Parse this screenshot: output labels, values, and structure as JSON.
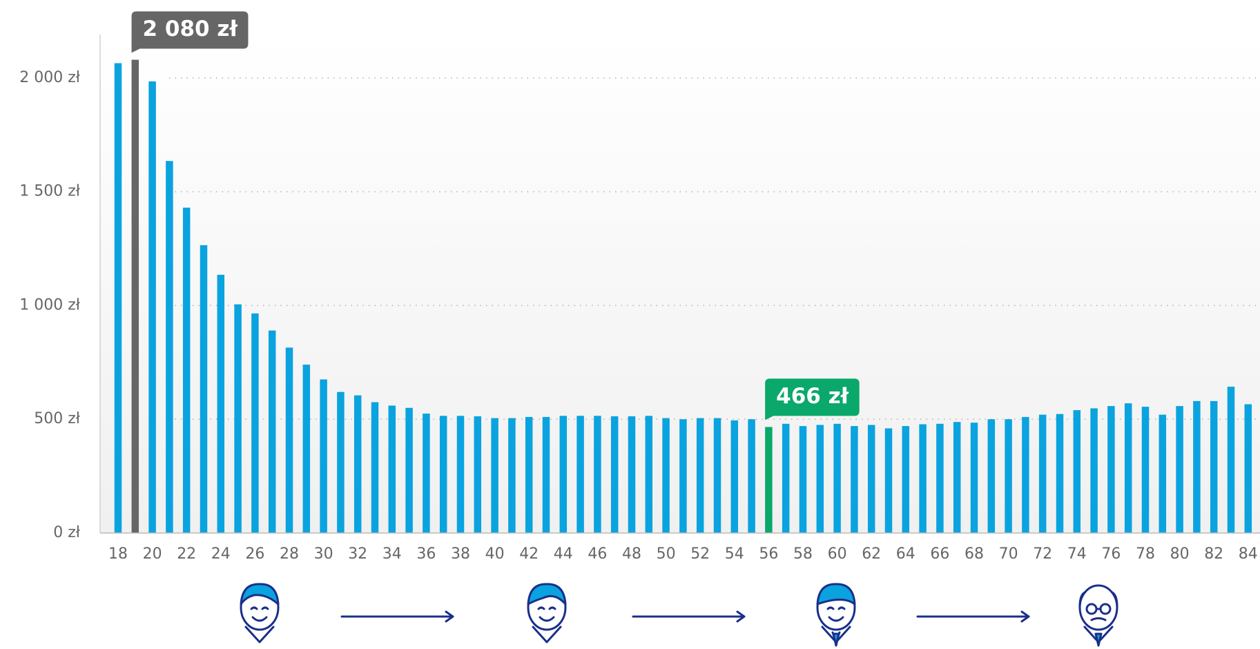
{
  "chart_data": {
    "type": "bar",
    "categories": [
      "18",
      null,
      "20",
      null,
      "22",
      null,
      "24",
      null,
      "26",
      null,
      "28",
      null,
      "30",
      null,
      "32",
      null,
      "34",
      null,
      "36",
      null,
      "38",
      null,
      "40",
      null,
      "42",
      null,
      "44",
      null,
      "46",
      null,
      "48",
      null,
      "50",
      null,
      "52",
      null,
      "54",
      null,
      "56",
      null,
      "58",
      null,
      "60",
      null,
      "62",
      null,
      "64",
      null,
      "66",
      null,
      "68",
      null,
      "70",
      null,
      "72",
      null,
      "74",
      null,
      "76",
      null,
      "78",
      null,
      "80",
      null,
      "82",
      null,
      "84",
      null
    ],
    "values": [
      2065,
      2080,
      1985,
      1635,
      1430,
      1265,
      1135,
      1005,
      965,
      890,
      815,
      740,
      675,
      620,
      605,
      575,
      560,
      550,
      525,
      515,
      515,
      513,
      505,
      505,
      510,
      510,
      515,
      515,
      515,
      513,
      513,
      515,
      505,
      500,
      505,
      505,
      495,
      500,
      466,
      480,
      470,
      475,
      480,
      470,
      475,
      460,
      470,
      478,
      480,
      488,
      485,
      500,
      500,
      510,
      520,
      523,
      540,
      548,
      558,
      570,
      555,
      520,
      558,
      580,
      580,
      643,
      566,
      555
    ],
    "value_labels": [
      null,
      "2 080 zł",
      null,
      null,
      null,
      null,
      null,
      null,
      null,
      null,
      null,
      null,
      null,
      null,
      null,
      null,
      null,
      null,
      null,
      null,
      null,
      null,
      null,
      null,
      null,
      null,
      null,
      null,
      null,
      null,
      null,
      null,
      null,
      null,
      null,
      null,
      null,
      null,
      "466 zł",
      null,
      null,
      null,
      null,
      null,
      null,
      null,
      null,
      null,
      null,
      null,
      null,
      null,
      null,
      null,
      null,
      null,
      null,
      null,
      null,
      null,
      null,
      null,
      null,
      null,
      null,
      null,
      null,
      null
    ],
    "color": "#0aa3df",
    "highlight_colors": [
      null,
      "#666666",
      null,
      null,
      null,
      null,
      null,
      null,
      null,
      null,
      null,
      null,
      null,
      null,
      null,
      null,
      null,
      null,
      null,
      null,
      null,
      null,
      null,
      null,
      null,
      null,
      null,
      null,
      null,
      null,
      null,
      null,
      null,
      null,
      null,
      null,
      null,
      null,
      "#0aa86b",
      null,
      null,
      null,
      null,
      null,
      null,
      null,
      null,
      null,
      null,
      null,
      null,
      null,
      null,
      null,
      null,
      null,
      null,
      null,
      null,
      null,
      null,
      null,
      null,
      null,
      null,
      null,
      null,
      null
    ],
    "ylim": [
      0,
      2200
    ],
    "yticks": [
      {
        "value": 0,
        "label": "0 zł"
      },
      {
        "value": 500,
        "label": "500 zł"
      },
      {
        "value": 1000,
        "label": "1 000 zł"
      },
      {
        "value": 1500,
        "label": "1 500 zł"
      },
      {
        "value": 2000,
        "label": "2 000 zł"
      }
    ],
    "grid": true
  }
}
